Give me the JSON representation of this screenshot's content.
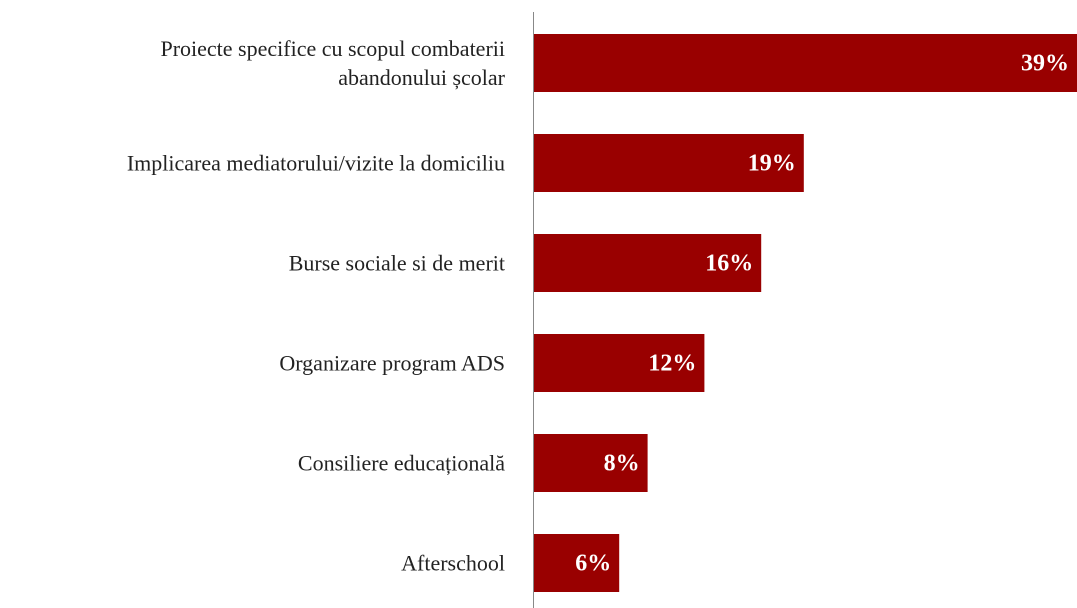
{
  "chart_data": {
    "type": "hbar",
    "categories": [
      "Proiecte specifice cu scopul combaterii\nabandonului școlar",
      "Implicarea mediatorului/vizite la domiciliu",
      "Burse sociale si de merit",
      "Organizare program ADS",
      "Consiliere educațională",
      "Afterschool"
    ],
    "values": [
      39,
      19,
      16,
      12,
      8,
      6
    ],
    "value_labels": [
      "39%",
      "19%",
      "16%",
      "12%",
      "8%",
      "6%"
    ],
    "color": "#990000"
  }
}
